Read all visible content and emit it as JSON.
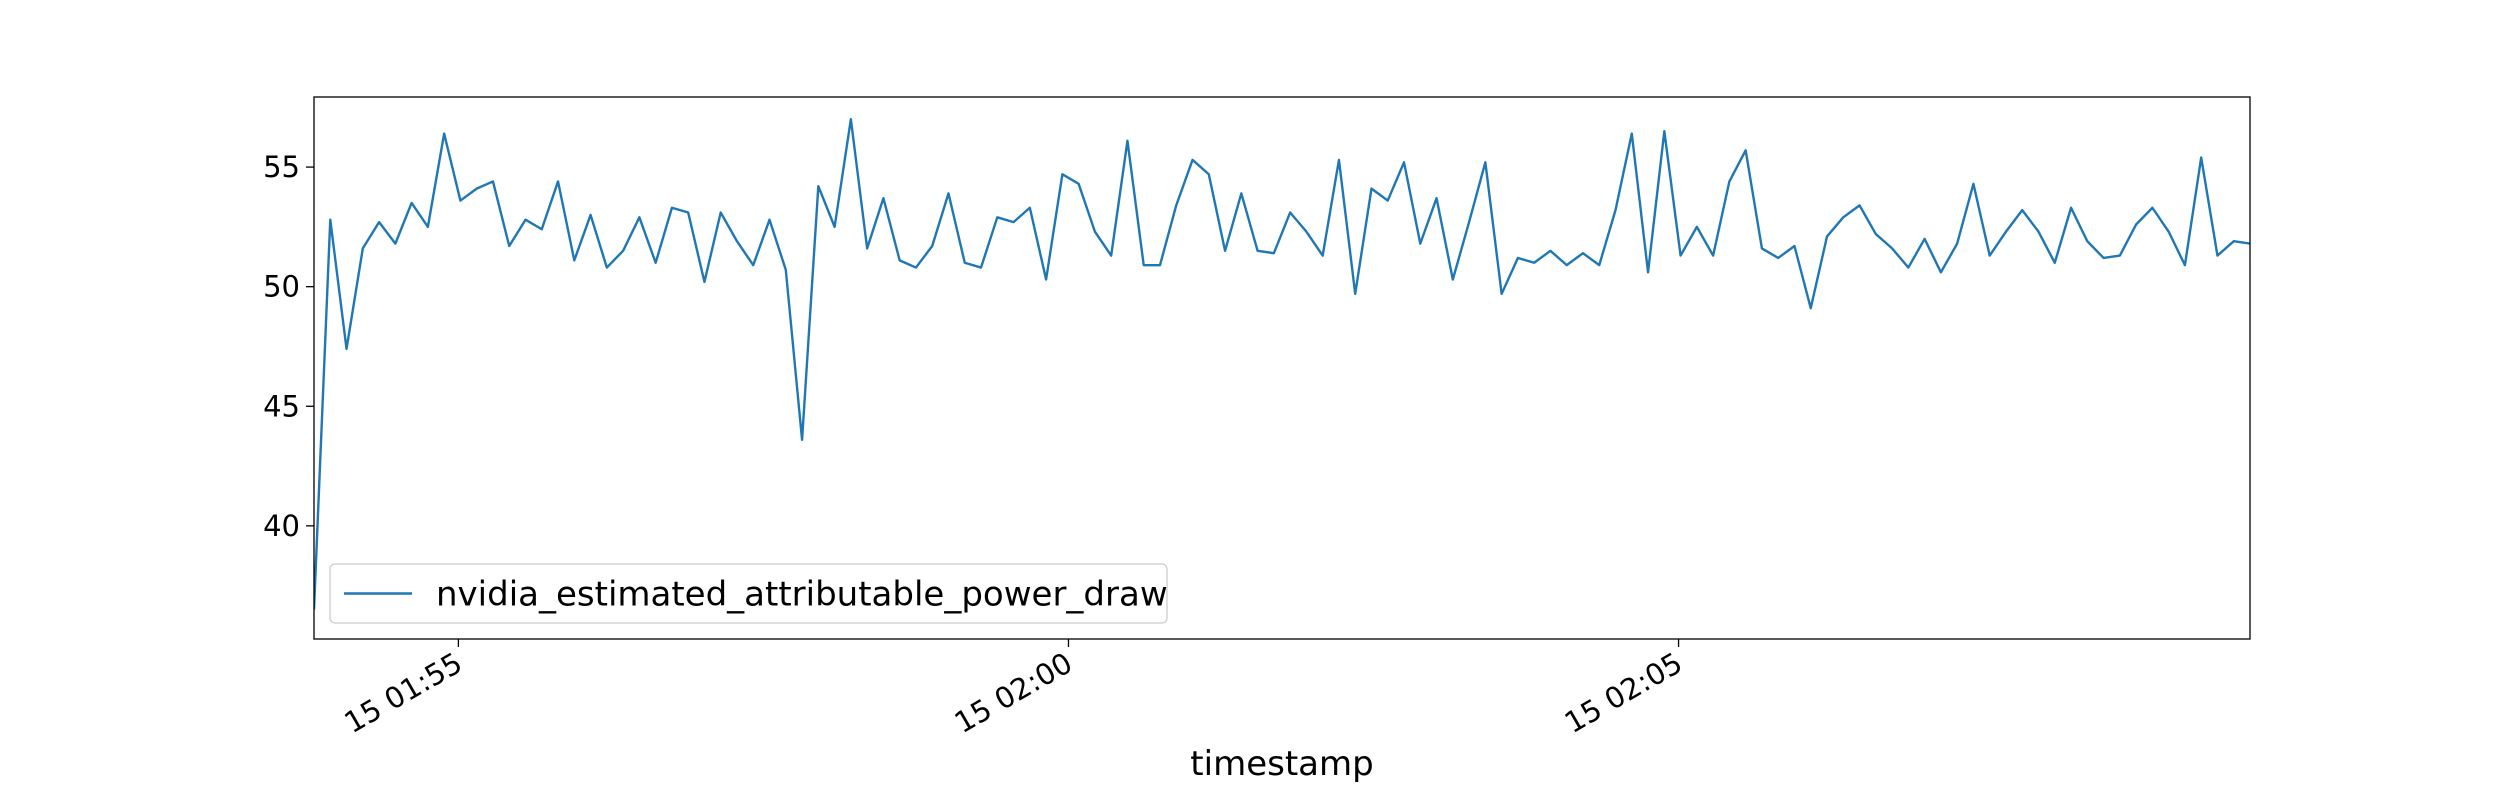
{
  "chart_data": {
    "type": "line",
    "xlabel": "timestamp",
    "x": [
      "15 01:53:49",
      "15 01:53:57",
      "15 01:54:05",
      "15 01:54:13",
      "15 01:54:21",
      "15 01:54:29",
      "15 01:54:37",
      "15 01:54:45",
      "15 01:54:53",
      "15 01:55:01",
      "15 01:55:09",
      "15 01:55:17",
      "15 01:55:25",
      "15 01:55:33",
      "15 01:55:41",
      "15 01:55:49",
      "15 01:55:57",
      "15 01:56:05",
      "15 01:56:13",
      "15 01:56:21",
      "15 01:56:29",
      "15 01:56:37",
      "15 01:56:45",
      "15 01:56:53",
      "15 01:57:01",
      "15 01:57:09",
      "15 01:57:17",
      "15 01:57:25",
      "15 01:57:33",
      "15 01:57:41",
      "15 01:57:49",
      "15 01:57:57",
      "15 01:58:05",
      "15 01:58:13",
      "15 01:58:21",
      "15 01:58:29",
      "15 01:58:37",
      "15 01:58:45",
      "15 01:58:53",
      "15 01:59:01",
      "15 01:59:09",
      "15 01:59:17",
      "15 01:59:25",
      "15 01:59:33",
      "15 01:59:41",
      "15 01:59:49",
      "15 01:59:57",
      "15 02:00:05",
      "15 02:00:13",
      "15 02:00:21",
      "15 02:00:29",
      "15 02:00:37",
      "15 02:00:45",
      "15 02:00:53",
      "15 02:01:01",
      "15 02:01:09",
      "15 02:01:17",
      "15 02:01:25",
      "15 02:01:33",
      "15 02:01:41",
      "15 02:01:49",
      "15 02:01:57",
      "15 02:02:05",
      "15 02:02:13",
      "15 02:02:21",
      "15 02:02:29",
      "15 02:02:37",
      "15 02:02:45",
      "15 02:02:53",
      "15 02:03:01",
      "15 02:03:09",
      "15 02:03:17",
      "15 02:03:25",
      "15 02:03:33",
      "15 02:03:41",
      "15 02:03:49",
      "15 02:03:57",
      "15 02:04:05",
      "15 02:04:13",
      "15 02:04:21",
      "15 02:04:29",
      "15 02:04:37",
      "15 02:04:45",
      "15 02:04:53",
      "15 02:05:01",
      "15 02:05:09",
      "15 02:05:17",
      "15 02:05:25",
      "15 02:05:33",
      "15 02:05:41",
      "15 02:05:49",
      "15 02:05:57",
      "15 02:06:05",
      "15 02:06:13",
      "15 02:06:21",
      "15 02:06:29",
      "15 02:06:37",
      "15 02:06:45",
      "15 02:06:53",
      "15 02:07:01",
      "15 02:07:09",
      "15 02:07:17",
      "15 02:07:25",
      "15 02:07:33",
      "15 02:07:41",
      "15 02:07:49",
      "15 02:07:57",
      "15 02:08:05",
      "15 02:08:13",
      "15 02:08:21",
      "15 02:08:29",
      "15 02:08:37",
      "15 02:08:45",
      "15 02:08:53",
      "15 02:09:01",
      "15 02:09:09",
      "15 02:09:17",
      "15 02:09:25",
      "15 02:09:33",
      "15 02:09:41"
    ],
    "series": [
      {
        "name": "nvidia_estimated_attributable_power_draw",
        "color": "#1f77b4",
        "values": [
          36.5,
          52.8,
          47.4,
          51.6,
          52.7,
          51.8,
          53.5,
          52.5,
          56.4,
          53.6,
          54.1,
          54.4,
          51.7,
          52.8,
          52.4,
          54.4,
          51.1,
          53.0,
          50.8,
          51.5,
          52.9,
          51.0,
          53.3,
          53.1,
          50.2,
          53.1,
          51.9,
          50.9,
          52.8,
          50.7,
          43.6,
          54.2,
          52.5,
          57.0,
          51.6,
          53.7,
          51.1,
          50.8,
          51.7,
          53.9,
          51.0,
          50.8,
          52.9,
          52.7,
          53.3,
          50.3,
          54.7,
          54.3,
          52.3,
          51.3,
          56.1,
          50.9,
          50.9,
          53.4,
          55.3,
          54.7,
          51.5,
          53.9,
          51.5,
          51.4,
          53.1,
          52.3,
          51.3,
          55.3,
          49.7,
          54.1,
          53.6,
          55.2,
          51.8,
          53.7,
          50.3,
          52.7,
          55.2,
          49.7,
          51.2,
          51.0,
          51.5,
          50.9,
          51.4,
          50.9,
          53.2,
          56.4,
          50.6,
          56.5,
          51.3,
          52.5,
          51.3,
          54.4,
          55.7,
          51.6,
          51.2,
          51.7,
          49.1,
          52.1,
          52.9,
          53.4,
          52.2,
          51.6,
          50.8,
          52.0,
          50.6,
          51.8,
          54.3,
          51.3,
          52.3,
          53.2,
          52.3,
          51.0,
          53.3,
          51.9,
          51.2,
          51.3,
          52.6,
          53.3,
          52.3,
          50.9,
          55.4,
          51.3,
          51.9,
          51.8
        ]
      }
    ],
    "xlim": [
      "15 01:53:49",
      "15 02:09:41"
    ],
    "xticks": [
      "15 01:55",
      "15 02:00",
      "15 02:05"
    ],
    "ylim": [
      35.27,
      57.93
    ],
    "yticks": [
      40,
      45,
      50,
      55
    ],
    "grid": false,
    "legend": "lower left"
  }
}
